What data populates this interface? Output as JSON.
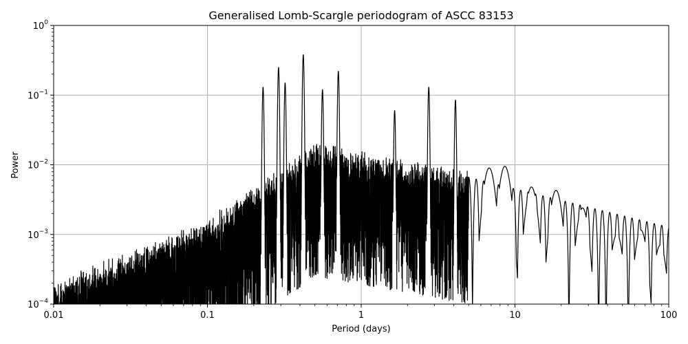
{
  "chart_data": {
    "type": "line",
    "title": "Generalised Lomb-Scargle periodogram of ASCC 83153",
    "xlabel": "Period (days)",
    "ylabel": "Power",
    "xscale": "log",
    "yscale": "log",
    "xlim": [
      0.01,
      100
    ],
    "ylim": [
      0.0001,
      1
    ],
    "grid": true,
    "line_color": "#000000",
    "x_ticks": [
      {
        "value": 0.01,
        "label": "0.01"
      },
      {
        "value": 0.1,
        "label": "0.1"
      },
      {
        "value": 1,
        "label": "1"
      },
      {
        "value": 10,
        "label": "10"
      },
      {
        "value": 100,
        "label": "100"
      }
    ],
    "y_ticks": [
      {
        "value": 0.0001,
        "base": "10",
        "exp": "−4"
      },
      {
        "value": 0.001,
        "base": "10",
        "exp": "−3"
      },
      {
        "value": 0.01,
        "base": "10",
        "exp": "−2"
      },
      {
        "value": 0.1,
        "base": "10",
        "exp": "−1"
      },
      {
        "value": 1,
        "base": "10",
        "exp": "0"
      }
    ],
    "peaks": [
      {
        "period": 0.42,
        "power": 0.38
      },
      {
        "period": 0.29,
        "power": 0.25
      },
      {
        "period": 0.71,
        "power": 0.22
      },
      {
        "period": 0.23,
        "power": 0.13
      },
      {
        "period": 2.75,
        "power": 0.13
      },
      {
        "period": 0.32,
        "power": 0.15
      },
      {
        "period": 0.56,
        "power": 0.12
      },
      {
        "period": 4.1,
        "power": 0.085
      },
      {
        "period": 1.65,
        "power": 0.06
      },
      {
        "period": 6.8,
        "power": 0.009
      },
      {
        "period": 8.6,
        "power": 0.0095
      },
      {
        "period": 12.8,
        "power": 0.0048
      },
      {
        "period": 18.5,
        "power": 0.0043
      },
      {
        "period": 27.5,
        "power": 0.0024
      },
      {
        "period": 46,
        "power": 0.001
      },
      {
        "period": 66,
        "power": 0.00115
      },
      {
        "period": 88,
        "power": 0.0007
      }
    ]
  }
}
